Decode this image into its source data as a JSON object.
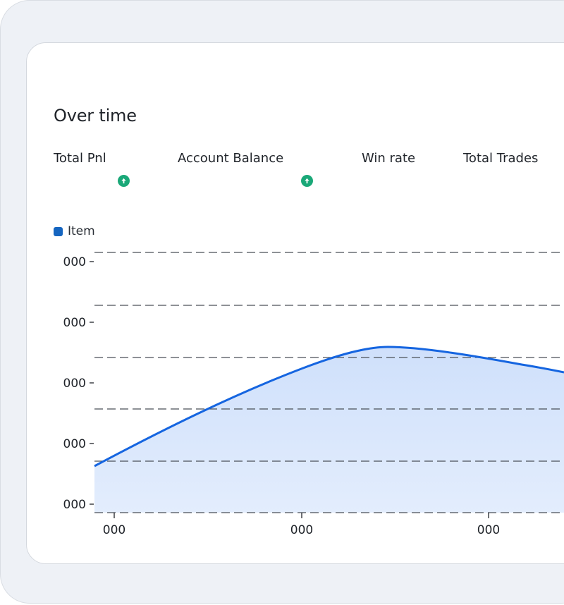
{
  "card": {
    "title": "Over time"
  },
  "stats": [
    {
      "label": "Total Pnl",
      "trend": "up",
      "trend_icon": "arrow-up-icon"
    },
    {
      "label": "Account Balance",
      "trend": "up",
      "trend_icon": "arrow-up-icon"
    },
    {
      "label": "Win rate"
    },
    {
      "label": "Total Trades"
    }
  ],
  "colors": {
    "line": "#1565e0",
    "area": "#d6e4fb",
    "trend_up": "#1aa878",
    "legend": "#1565c0"
  },
  "chart_data": {
    "type": "area",
    "series": [
      {
        "name": "Item"
      }
    ],
    "y_tick_labels": [
      "000",
      "000",
      "000",
      "000",
      "000"
    ],
    "x_tick_labels": [
      "000",
      "000",
      "000"
    ],
    "grid": "horizontal dashed",
    "legend_position": "top-left"
  }
}
